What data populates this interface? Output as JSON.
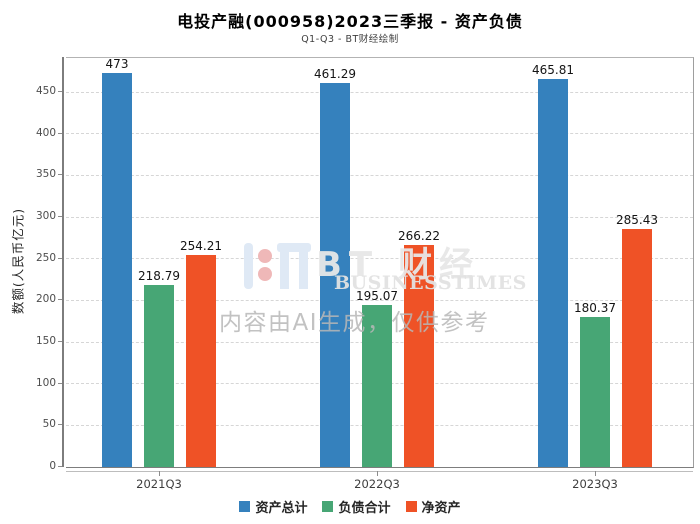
{
  "header": {
    "title": "电投产融(000958)2023三季报 - 资产负债",
    "subtitle": "Q1-Q3 - BT财经绘制"
  },
  "watermark": {
    "brand_cn": "BT 财经",
    "brand_en": "BUSINESSTIMES",
    "disclaimer": "内容由AI生成，仅供参考"
  },
  "chart_data": {
    "type": "bar",
    "categories": [
      "2021Q3",
      "2022Q3",
      "2023Q3"
    ],
    "series": [
      {
        "name": "资产总计",
        "color": "#3581bd",
        "values": [
          473,
          461.29,
          465.81
        ]
      },
      {
        "name": "负债合计",
        "color": "#47a675",
        "values": [
          218.79,
          195.07,
          180.37
        ]
      },
      {
        "name": "净资产",
        "color": "#ef5226",
        "values": [
          254.21,
          266.22,
          285.43
        ]
      }
    ],
    "title": "电投产融(000958)2023三季报 - 资产负债",
    "xlabel": "",
    "ylabel": "数额(人民币亿元)",
    "yticks": [
      0,
      50,
      100,
      150,
      200,
      250,
      300,
      350,
      400,
      450
    ],
    "ylim": [
      0,
      491
    ],
    "grid": true,
    "grid_style": "dashed",
    "legend_position": "bottom",
    "bar_value_labels": true
  }
}
